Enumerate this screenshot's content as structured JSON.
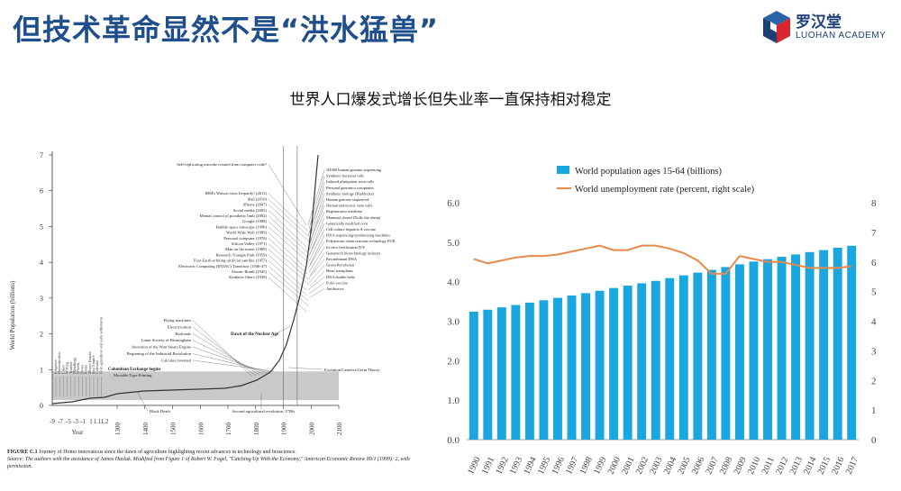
{
  "slide": {
    "title": "但技术革命显然不是“洪水猛兽”",
    "subtitle": "世界人口爆发式增长但失业率一直保持相对稳定"
  },
  "logo": {
    "name_cn": "罗汉堂",
    "name_en": "LUOHAN ACADEMY",
    "icon": "luohan-cube-logo",
    "colors": {
      "blue": "#1d3f78",
      "red": "#d8262e"
    }
  },
  "left_figure": {
    "y_axis_label": "World Population (billions)",
    "y_ticks": [
      "0",
      "1",
      "2",
      "3",
      "4",
      "5",
      "6",
      "7"
    ],
    "x_axis_title": "Year",
    "x_ticks_bc": [
      "-9",
      "-7",
      "-5",
      "-3",
      "-1",
      "1",
      "1.1",
      "1.2"
    ],
    "x_ticks": [
      "1300",
      "1400",
      "1500",
      "1600",
      "1700",
      "1800",
      "1900",
      "2000",
      "2100"
    ],
    "annotations_top": [
      "Self-replicating microbe created from computer code?",
      "IBM's Watson wins Jeopardy! (2011)",
      "iPad (2010)",
      "iPhone (2007)",
      "Social media (2005)",
      "Mental control of prosthetic limb (2002)",
      "Google (1998)",
      "Hubble space telescope (1990)",
      "World Wide Web (1989)",
      "Personal computer (1976)",
      "Silicon Valley (1971)",
      "Man on the moon (1969)",
      "Research Triangle Park (1959)",
      "First Earth-orbiting artificial satellite (1957)",
      "Electronic Computing (ENIAC) Transistor (1946-47)",
      "Atomic Bomb (1945)",
      "Synthetic fibers (1939)"
    ],
    "annotations_right": [
      "\\$1000 human genome sequencing",
      "Synthetic bacterial cells",
      "Induced pluripotent stem cells",
      "Personal genomics companies",
      "Synthetic biology (BioBricks)",
      "Human genome sequenced",
      "Human embryonic stem cells",
      "Regenerative medicine",
      "Mammal cloned (Dolly the sheep)",
      "Genetically modified corn",
      "Cell culture hepatitis A vaccine",
      "DNA sequencing/synthesizing machines",
      "Polymerase chain reaction technology PCR",
      "In vitro fertilization IVF",
      "Genentech biotechnology industry",
      "Recombinant DNA",
      "Green Revolution",
      "Heart transplants",
      "DNA double helix",
      "Polio vaccine",
      "Antibiotics"
    ],
    "annotations_mid": [
      "Flying machines",
      "Electrification",
      "Railroads",
      "Lunar Society of Birmingham",
      "Invention of the Watt Steam Engine",
      "Beginning of the Industrial Revolution",
      "Calculus invented"
    ],
    "dawn_label": "Dawn of the Nuclear Age",
    "columbian_label": "Columbian Exchange begins",
    "printing_label": "Movable Type Printing",
    "black_death_label": "Black Death",
    "second_ag_label": "Second agricultural revolution, 1700s",
    "evolution_label": "Evolution/Genetics/Germ Theory",
    "early_labels": [
      "Irrigation",
      "Domestication",
      "Cities",
      "Writing",
      "Textiles",
      "Metallurgy",
      "Wheels",
      "Plows",
      "Rome",
      "Mayan Empire",
      "Inca Empire",
      "Calendar",
      "First agriculture and early settlements"
    ],
    "caption_lead": "FIGURE C.1",
    "caption_title": "Journey of Homo innovaticus since the dawn of agriculture highlighting recent advances in technology and bioscience.",
    "caption_source": "Source: The authors with the assistance of James Haslak. Modified from Figure 1 of Robert W. Fogel, \"Catching Up With the Economy,\" American Economic Review 89/1 (1999): 2, with permission."
  },
  "chart_data": {
    "type": "bar",
    "categories": [
      "1990",
      "1991",
      "1992",
      "1993",
      "1994",
      "1995",
      "1996",
      "1997",
      "1998",
      "1999",
      "2000",
      "2001",
      "2002",
      "2003",
      "2004",
      "2005",
      "2006",
      "2007",
      "2008",
      "2009",
      "2010",
      "2011",
      "2012",
      "2013",
      "2014",
      "2015",
      "2016",
      "2017"
    ],
    "series": [
      {
        "name": "World population ages 15-64 (billions)",
        "type": "bar",
        "axis": "left",
        "color": "#1aa7e0",
        "values": [
          3.24,
          3.29,
          3.35,
          3.41,
          3.47,
          3.53,
          3.59,
          3.65,
          3.71,
          3.77,
          3.84,
          3.9,
          3.96,
          4.02,
          4.09,
          4.16,
          4.23,
          4.3,
          4.37,
          4.44,
          4.51,
          4.57,
          4.63,
          4.69,
          4.75,
          4.8,
          4.86,
          4.91
        ]
      },
      {
        "name": "World unemployment rate (percent, right scale)",
        "type": "line",
        "axis": "right",
        "color": "#e8894a",
        "values": [
          6.1,
          5.95,
          6.05,
          6.15,
          6.2,
          6.2,
          6.25,
          6.35,
          6.45,
          6.55,
          6.4,
          6.4,
          6.55,
          6.55,
          6.45,
          6.3,
          6.05,
          5.6,
          5.6,
          6.2,
          6.1,
          6.0,
          6.0,
          5.9,
          5.8,
          5.8,
          5.8,
          5.85
        ]
      }
    ],
    "y_left": {
      "ticks": [
        "0.0",
        "1.0",
        "2.0",
        "3.0",
        "4.0",
        "5.0",
        "6.0"
      ],
      "range": [
        0,
        6
      ]
    },
    "y_right": {
      "ticks": [
        "0",
        "1",
        "2",
        "3",
        "4",
        "5",
        "6",
        "7",
        "8"
      ],
      "range": [
        0,
        8
      ]
    },
    "legend_position": "top-left",
    "grid": false
  }
}
